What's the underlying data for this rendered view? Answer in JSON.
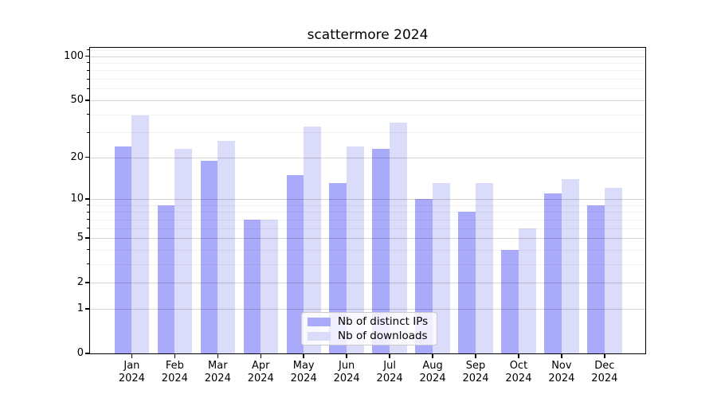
{
  "chart_data": {
    "type": "bar",
    "title": "scattermore 2024",
    "categories": [
      "Jan 2024",
      "Feb 2024",
      "Mar 2024",
      "Apr 2024",
      "May 2024",
      "Jun 2024",
      "Jul 2024",
      "Aug 2024",
      "Sep 2024",
      "Oct 2024",
      "Nov 2024",
      "Dec 2024"
    ],
    "series": [
      {
        "name": "Nb of distinct IPs",
        "color": "#aaaafa",
        "values": [
          24,
          9,
          19,
          7,
          15,
          13,
          23,
          10,
          8,
          4,
          11,
          9
        ]
      },
      {
        "name": "Nb of downloads",
        "color": "#dbdbfa",
        "values": [
          39,
          23,
          26,
          7,
          33,
          24,
          35,
          13,
          13,
          6,
          14,
          12
        ]
      }
    ],
    "xlabel": "",
    "ylabel": "",
    "yscale": "log1p",
    "ylim": [
      0,
      114
    ],
    "yticks": [
      100,
      50,
      20,
      10,
      5,
      2,
      1,
      0
    ],
    "minor_yticks": [
      110,
      90,
      80,
      70,
      60,
      40,
      30,
      9,
      8,
      7,
      6,
      4,
      3
    ],
    "grid": true,
    "legend_position": "lower center",
    "colors": {
      "background": "#ffffff",
      "major_grid": "#d4d4d4",
      "minor_grid": "#f2f2f2",
      "axis": "#000000",
      "text": "#000000"
    }
  }
}
